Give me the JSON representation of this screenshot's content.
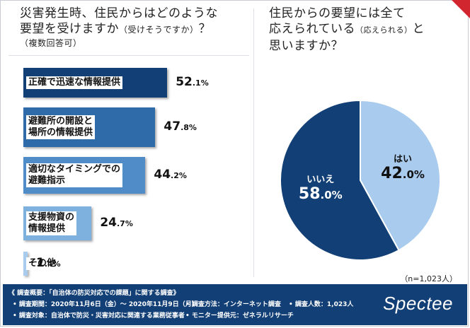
{
  "left_question": {
    "line1": "災害発生時、住民からはどのような",
    "line2_main": "要望を受けますか",
    "line2_note": "（受けそうですか）",
    "line2_end": "？",
    "line3": "（複数回答可）"
  },
  "right_question": {
    "line1": "住民からの要望には全て",
    "line2_main": "応えられている",
    "line2_note": "（応えられる）",
    "line2_end": "と",
    "line3": "思いますか？"
  },
  "colors": {
    "bar1": "#123f75",
    "bar2": "#2f6aa9",
    "bar3": "#4f8cc8",
    "bar4": "#7fb1de",
    "bar5": "#a9cbee",
    "pie_no": "#123f75",
    "pie_yes": "#a9cbee",
    "footer": "#123f75",
    "accent": "#d1252f"
  },
  "chart_data": [
    {
      "type": "bar",
      "orientation": "horizontal",
      "categories": [
        "正確で迅速な情報提供",
        "避難所の開設と場所の情報提供",
        "適切なタイミングでの避難指示",
        "支援物資の情報提供",
        "その他"
      ],
      "label_lines": [
        [
          "正確で迅速な情報提供"
        ],
        [
          "避難所の開設と",
          "場所の情報提供"
        ],
        [
          "適切なタイミングでの",
          "避難指示"
        ],
        [
          "支援物資の",
          "情報提供"
        ],
        [
          "その他"
        ]
      ],
      "values": [
        52.1,
        47.8,
        44.2,
        24.7,
        1.4
      ],
      "value_labels": [
        {
          "int": "52",
          "dec": ".1%"
        },
        {
          "int": "47",
          "dec": ".8%"
        },
        {
          "int": "44",
          "dec": ".2%"
        },
        {
          "int": "24",
          "dec": ".7%"
        },
        {
          "int": "1",
          "dec": ".4%"
        }
      ],
      "unit": "%"
    },
    {
      "type": "pie",
      "labels": [
        "はい",
        "いいえ"
      ],
      "values": [
        42.0,
        58.0
      ],
      "value_labels": [
        {
          "int": "42",
          "dec": ".0%"
        },
        {
          "int": "58",
          "dec": ".0%"
        }
      ],
      "note": "（n=1,023人）"
    }
  ],
  "footer": {
    "title": "《 調査概要：「自治体の防災対応での課題」に関する調査》",
    "period": "• 調査期間：2020年11月6日（金）～ 2020年11月9日（月）",
    "method": "• 調査方法：インターネット調査",
    "count": "• 調査人数：1,023人",
    "target": "• 調査対象：自治体で防災・災害対応に関連する業務従事者",
    "monitor": "• モニター提供元：ゼネラルリサーチ",
    "logo": "Spectee"
  }
}
